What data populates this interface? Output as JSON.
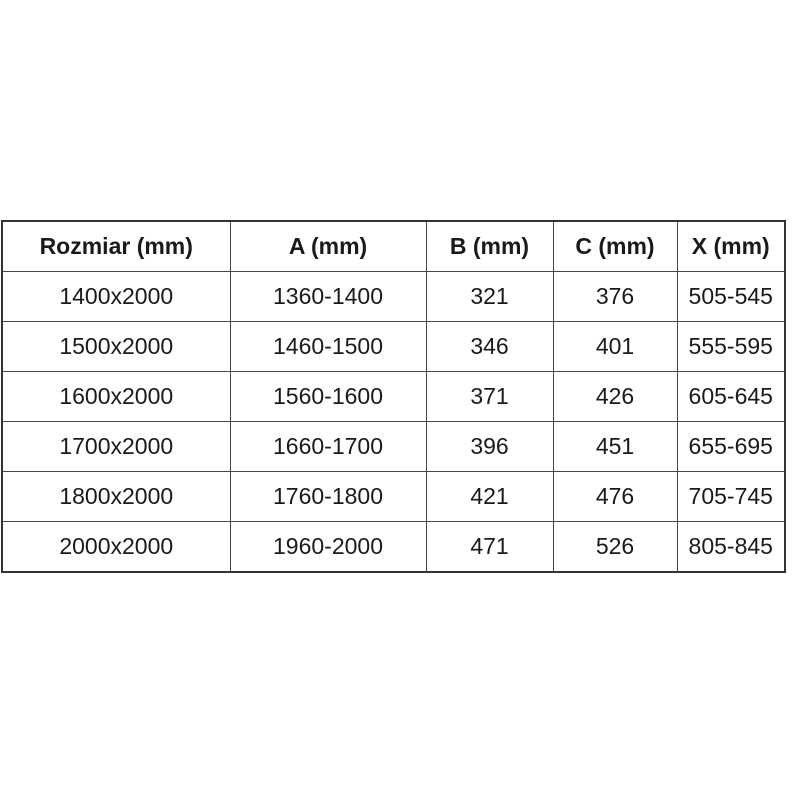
{
  "table": {
    "columns": [
      "Rozmiar (mm)",
      "A (mm)",
      "B (mm)",
      "C (mm)",
      "X (mm)"
    ],
    "rows": [
      [
        "1400x2000",
        "1360-1400",
        "321",
        "376",
        "505-545"
      ],
      [
        "1500x2000",
        "1460-1500",
        "346",
        "401",
        "555-595"
      ],
      [
        "1600x2000",
        "1560-1600",
        "371",
        "426",
        "605-645"
      ],
      [
        "1700x2000",
        "1660-1700",
        "396",
        "451",
        "655-695"
      ],
      [
        "1800x2000",
        "1760-1800",
        "421",
        "476",
        "705-745"
      ],
      [
        "2000x2000",
        "1960-2000",
        "471",
        "526",
        "805-845"
      ]
    ],
    "colors": {
      "text": "#1a1a1a",
      "border_inner": "#474747",
      "border_outer": "#333333",
      "background": "#ffffff"
    }
  }
}
